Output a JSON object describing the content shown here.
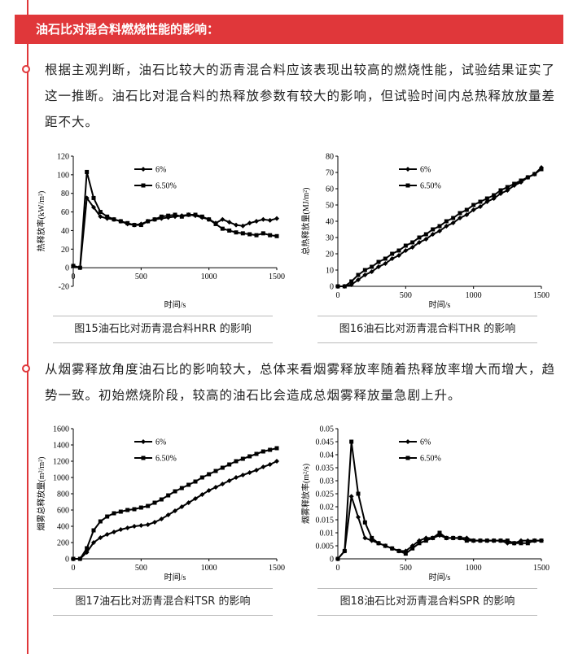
{
  "header": {
    "title": "油石比对混合料燃烧性能的影响："
  },
  "paragraphs": [
    "根据主观判断，油石比较大的沥青混合料应该表现出较高的燃烧性能，试验结果证实了这一推断。油石比对混合料的热释放参数有较大的影响，但试验时间内总热释放放量差距不大。",
    "从烟雾释放角度油石比的影响较大，总体来看烟雾释放率随着热释放率增大而增大，趋势一致。初始燃烧阶段，较高的油石比会造成总烟雾释放量急剧上升。"
  ],
  "chart_data": [
    {
      "type": "line",
      "caption": "图15油石比对沥青混合料HRR 的影响",
      "x_label": "时间/s",
      "y_label": "热释放率(kW/m²)",
      "x": [
        0,
        50,
        100,
        150,
        200,
        250,
        300,
        350,
        400,
        450,
        500,
        550,
        600,
        650,
        700,
        750,
        800,
        850,
        900,
        950,
        1000,
        1050,
        1100,
        1150,
        1200,
        1250,
        1300,
        1350,
        1400,
        1450,
        1500
      ],
      "xlim": [
        0,
        1500
      ],
      "xticks": [
        0,
        500,
        1000,
        1500
      ],
      "ylim": [
        -20,
        120
      ],
      "yticks": [
        -20,
        0,
        20,
        40,
        60,
        80,
        100,
        120
      ],
      "series": [
        {
          "name": "6%",
          "color": "#000000",
          "marker": "diamond",
          "values": [
            2,
            0,
            75,
            65,
            55,
            53,
            52,
            50,
            47,
            46,
            47,
            50,
            52,
            53,
            54,
            55,
            56,
            57,
            56,
            54,
            52,
            48,
            52,
            49,
            46,
            45,
            48,
            50,
            52,
            51,
            53
          ]
        },
        {
          "name": "6.50%",
          "color": "#000000",
          "marker": "square",
          "values": [
            2,
            0,
            103,
            75,
            60,
            55,
            52,
            50,
            48,
            46,
            46,
            50,
            52,
            55,
            56,
            57,
            55,
            57,
            57,
            55,
            52,
            47,
            42,
            40,
            38,
            37,
            36,
            35,
            37,
            35,
            34
          ]
        }
      ]
    },
    {
      "type": "line",
      "caption": "图16油石比对沥青混合料THR 的影响",
      "x_label": "时间/s",
      "y_label": "总热释放量(MJ/m²)",
      "x": [
        0,
        50,
        100,
        150,
        200,
        250,
        300,
        350,
        400,
        450,
        500,
        550,
        600,
        650,
        700,
        750,
        800,
        850,
        900,
        950,
        1000,
        1050,
        1100,
        1150,
        1200,
        1250,
        1300,
        1350,
        1400,
        1450,
        1500
      ],
      "xlim": [
        0,
        1500
      ],
      "xticks": [
        0,
        500,
        1000,
        1500
      ],
      "ylim": [
        0,
        80
      ],
      "yticks": [
        0,
        10,
        20,
        30,
        40,
        50,
        60,
        70,
        80
      ],
      "series": [
        {
          "name": "6%",
          "color": "#000000",
          "marker": "diamond",
          "values": [
            0,
            0,
            1,
            4,
            7,
            9,
            12,
            14,
            17,
            19,
            22,
            24,
            27,
            29,
            32,
            34,
            37,
            39,
            42,
            44,
            47,
            49,
            52,
            54,
            57,
            59,
            62,
            64,
            67,
            69,
            73
          ]
        },
        {
          "name": "6.50%",
          "color": "#000000",
          "marker": "square",
          "values": [
            0,
            0,
            3,
            7,
            10,
            12,
            15,
            17,
            20,
            22,
            25,
            27,
            30,
            32,
            35,
            37,
            40,
            42,
            45,
            47,
            50,
            52,
            54,
            56,
            59,
            61,
            63,
            65,
            67,
            69,
            72
          ]
        }
      ]
    },
    {
      "type": "line",
      "caption": "图17油石比对沥青混合料TSR 的影响",
      "x_label": "时间/s",
      "y_label": "烟雾总释放量(m²/m²)",
      "x": [
        0,
        50,
        100,
        150,
        200,
        250,
        300,
        350,
        400,
        450,
        500,
        550,
        600,
        650,
        700,
        750,
        800,
        850,
        900,
        950,
        1000,
        1050,
        1100,
        1150,
        1200,
        1250,
        1300,
        1350,
        1400,
        1450,
        1500
      ],
      "xlim": [
        0,
        1500
      ],
      "xticks": [
        0,
        500,
        1000,
        1500
      ],
      "ylim": [
        0,
        1600
      ],
      "yticks": [
        0,
        200,
        400,
        600,
        800,
        1000,
        1200,
        1400,
        1600
      ],
      "series": [
        {
          "name": "6%",
          "color": "#000000",
          "marker": "diamond",
          "values": [
            0,
            0,
            80,
            200,
            260,
            300,
            330,
            360,
            380,
            400,
            410,
            420,
            450,
            490,
            540,
            590,
            640,
            690,
            740,
            790,
            840,
            880,
            920,
            960,
            1000,
            1030,
            1060,
            1090,
            1130,
            1160,
            1200
          ]
        },
        {
          "name": "6.50%",
          "color": "#000000",
          "marker": "square",
          "values": [
            0,
            0,
            130,
            350,
            460,
            520,
            560,
            580,
            600,
            610,
            630,
            650,
            690,
            730,
            780,
            830,
            870,
            910,
            950,
            1000,
            1040,
            1080,
            1120,
            1160,
            1200,
            1230,
            1260,
            1290,
            1320,
            1340,
            1360
          ]
        }
      ]
    },
    {
      "type": "line",
      "caption": "图18油石比对沥青混合料SPR 的影响",
      "x_label": "时间/s",
      "y_label": "烟雾释放率(m²/s)",
      "x": [
        0,
        50,
        100,
        150,
        200,
        250,
        300,
        350,
        400,
        450,
        500,
        550,
        600,
        650,
        700,
        750,
        800,
        850,
        900,
        950,
        1000,
        1050,
        1100,
        1150,
        1200,
        1250,
        1300,
        1350,
        1400,
        1450,
        1500
      ],
      "xlim": [
        0,
        1500
      ],
      "xticks": [
        0,
        500,
        1000,
        1500
      ],
      "ylim": [
        0,
        0.05
      ],
      "yticks": [
        0,
        0.005,
        0.01,
        0.015,
        0.02,
        0.025,
        0.03,
        0.035,
        0.04,
        0.045,
        0.05
      ],
      "series": [
        {
          "name": "6%",
          "color": "#000000",
          "marker": "diamond",
          "values": [
            0,
            0.003,
            0.024,
            0.016,
            0.008,
            0.007,
            0.006,
            0.005,
            0.004,
            0.003,
            0.003,
            0.005,
            0.007,
            0.008,
            0.008,
            0.009,
            0.008,
            0.008,
            0.008,
            0.008,
            0.007,
            0.007,
            0.007,
            0.007,
            0.007,
            0.006,
            0.006,
            0.007,
            0.007,
            0.007,
            0.007
          ]
        },
        {
          "name": "6.50%",
          "color": "#000000",
          "marker": "square",
          "values": [
            0,
            0.003,
            0.045,
            0.025,
            0.014,
            0.008,
            0.006,
            0.005,
            0.004,
            0.003,
            0.002,
            0.004,
            0.006,
            0.007,
            0.008,
            0.01,
            0.008,
            0.008,
            0.008,
            0.007,
            0.007,
            0.007,
            0.007,
            0.007,
            0.007,
            0.007,
            0.006,
            0.006,
            0.006,
            0.007,
            0.007
          ]
        }
      ]
    }
  ]
}
